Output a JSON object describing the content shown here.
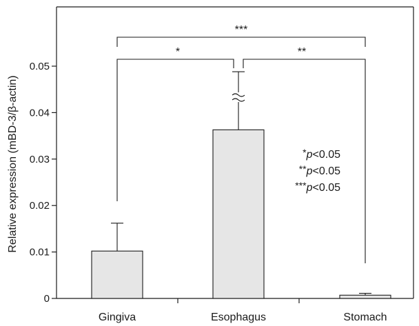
{
  "chart_data": {
    "type": "bar",
    "ylabel": "Relative expression (mBD-3/β-actin)",
    "categories": [
      "Gingiva",
      "Esophagus",
      "Stomach"
    ],
    "values": [
      0.0102,
      0.0363,
      0.0007
    ],
    "errors": [
      0.006,
      0.0125,
      0.0004
    ],
    "ylim": [
      0,
      0.06
    ],
    "yticks": [
      0,
      0.01,
      0.02,
      0.03,
      0.04,
      0.05
    ],
    "ytick_labels": [
      "0",
      "0.01",
      "0.02",
      "0.03",
      "0.04",
      "0.05"
    ],
    "axis_break_on": "Esophagus",
    "bar_color": "#e6e6e6",
    "significance": [
      {
        "from": "Gingiva",
        "to": "Esophagus",
        "label": "*"
      },
      {
        "from": "Esophagus",
        "to": "Stomach",
        "label": "**"
      },
      {
        "from": "Gingiva",
        "to": "Stomach",
        "label": "***"
      }
    ],
    "annotation": [
      {
        "stars": "*",
        "p": "p",
        "rest": "<0.05"
      },
      {
        "stars": "**",
        "p": "p",
        "rest": "<0.05"
      },
      {
        "stars": "***",
        "p": "p",
        "rest": "<0.05"
      }
    ]
  }
}
